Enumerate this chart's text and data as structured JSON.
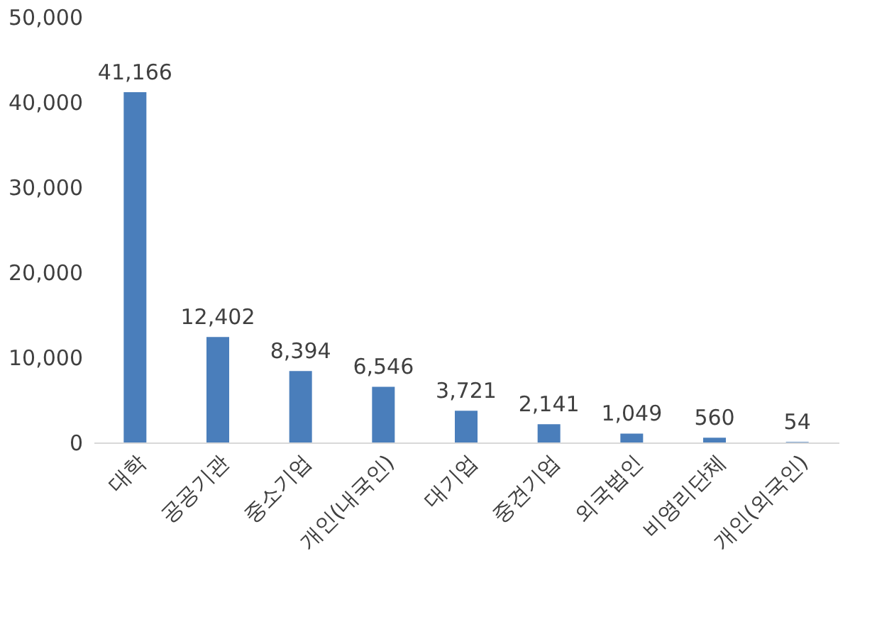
{
  "chart_data": {
    "type": "bar",
    "categories": [
      "대학",
      "공공기관",
      "중소기업",
      "개인(내국인)",
      "대기업",
      "중견기업",
      "외국법인",
      "비영리단체",
      "개인(외국인)"
    ],
    "values": [
      41166,
      12402,
      8394,
      6546,
      3721,
      2141,
      1049,
      560,
      54
    ],
    "value_labels": [
      "41,166",
      "12,402",
      "8,394",
      "6,546",
      "3,721",
      "2,141",
      "1,049",
      "560",
      "54"
    ],
    "color": "#4a7ebb",
    "ylim": [
      0,
      50000
    ],
    "yticks": [
      0,
      {
        "value": 10000,
        "label": "10,000"
      },
      {
        "value": 20000,
        "label": "20,000"
      },
      {
        "value": 30000,
        "label": "30,000"
      },
      {
        "value": 40000,
        "label": "40,000"
      },
      {
        "value": 50000,
        "label": "50,000"
      }
    ],
    "grid": false
  }
}
